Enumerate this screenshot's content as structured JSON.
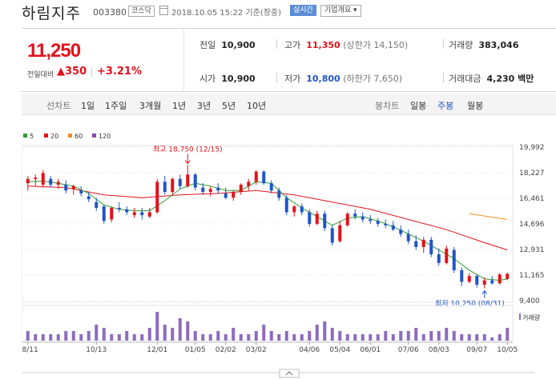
{
  "header": {
    "company_name": "하림지주",
    "code": "003380",
    "market_badge": "코스닥",
    "calendar_icon": "calendar-icon",
    "date": "2018.10.05 15:22 기준(장중)",
    "live_label": "실시간",
    "info_label": "기업개요 ▾"
  },
  "summary": {
    "price": "11,250",
    "change_label": "전일대비",
    "change_value": "▲350",
    "change_percent": "+3.21%",
    "prev_close_label": "전일",
    "prev_close": "10,900",
    "open_label": "시가",
    "open": "10,900",
    "high_label": "고가",
    "high": "11,350",
    "upper_limit": "(상한가 14,150)",
    "low_label": "저가",
    "low": "10,800",
    "lower_limit": "(하한가 7,650)",
    "volume_label": "거래량",
    "volume": "383,046",
    "amount_label": "거래대금",
    "amount": "4,230 백만"
  },
  "period_bar": {
    "line_label": "선차트",
    "periods": [
      "1일",
      "1주일",
      "3개월",
      "1년",
      "3년",
      "5년",
      "10년"
    ],
    "candle_label": "봉차트",
    "candle_types": [
      "일봉",
      "주봉",
      "월봉"
    ],
    "active_candle": "주봉"
  },
  "colors": {
    "up": "#e4111b",
    "down": "#1f55c8",
    "ma5": "#2ca02c",
    "ma20": "#e4111b",
    "ma60": "#f28c28",
    "ma120": "#8e44ad",
    "volume": "#8e6bbf"
  },
  "chart_data": {
    "type": "candlestick",
    "legend": [
      {
        "name": "5",
        "color": "#2ca02c"
      },
      {
        "name": "20",
        "color": "#e4111b"
      },
      {
        "name": "60",
        "color": "#f28c28"
      },
      {
        "name": "120",
        "color": "#8e44ad"
      }
    ],
    "y_ticks": [
      "19,992",
      "18,227",
      "16,461",
      "14,696",
      "12,931",
      "11,165",
      "9,400"
    ],
    "ylim": [
      9400,
      19992
    ],
    "x_ticks": [
      "08/11",
      "10/13",
      "12/01",
      "01/05",
      "02/02",
      "03/02",
      "04/06",
      "05/04",
      "06/01",
      "07/06",
      "08/03",
      "09/07",
      "10/05"
    ],
    "x_tick_index": [
      0,
      9,
      17,
      22,
      26,
      30,
      37,
      41,
      45,
      50,
      54,
      59,
      63
    ],
    "candles": [
      [
        17500,
        18000,
        17000,
        17800
      ],
      [
        17800,
        18100,
        17300,
        17900
      ],
      [
        17400,
        18400,
        17200,
        18200
      ],
      [
        17800,
        18000,
        17200,
        17400
      ],
      [
        17400,
        17800,
        17100,
        17600
      ],
      [
        17400,
        17700,
        16800,
        17000
      ],
      [
        17100,
        17400,
        16700,
        17300
      ],
      [
        17000,
        17300,
        16600,
        16800
      ],
      [
        16600,
        16900,
        16200,
        16400
      ],
      [
        16200,
        16500,
        15600,
        15800
      ],
      [
        15900,
        16000,
        14700,
        14900
      ],
      [
        15000,
        15900,
        14800,
        15800
      ],
      [
        15800,
        16200,
        15500,
        15700
      ],
      [
        15700,
        15900,
        15300,
        15500
      ],
      [
        15300,
        15800,
        15100,
        15500
      ],
      [
        15500,
        15800,
        15000,
        15300
      ],
      [
        15200,
        15800,
        15100,
        15500
      ],
      [
        15500,
        17800,
        15400,
        17600
      ],
      [
        17600,
        18000,
        16700,
        16900
      ],
      [
        16900,
        17900,
        16700,
        17800
      ],
      [
        17800,
        18100,
        17100,
        17300
      ],
      [
        17300,
        18750,
        17200,
        18100
      ],
      [
        18100,
        18200,
        17000,
        17200
      ],
      [
        17200,
        17500,
        16700,
        16900
      ],
      [
        16900,
        17300,
        16600,
        17100
      ],
      [
        17200,
        17500,
        16800,
        17000
      ],
      [
        16800,
        17200,
        16400,
        16500
      ],
      [
        16500,
        17000,
        16300,
        16900
      ],
      [
        16900,
        17500,
        16700,
        17400
      ],
      [
        17300,
        17800,
        17000,
        17600
      ],
      [
        17600,
        18400,
        17400,
        18300
      ],
      [
        18300,
        18400,
        17400,
        17500
      ],
      [
        17500,
        17700,
        16800,
        17000
      ],
      [
        17000,
        17200,
        16300,
        16500
      ],
      [
        16500,
        16700,
        15300,
        15500
      ],
      [
        15500,
        16000,
        15200,
        15900
      ],
      [
        15900,
        16100,
        15300,
        15500
      ],
      [
        15500,
        15700,
        14500,
        14700
      ],
      [
        14700,
        15600,
        14600,
        15400
      ],
      [
        15400,
        15600,
        14200,
        14400
      ],
      [
        14400,
        14600,
        13200,
        13400
      ],
      [
        13500,
        14900,
        13400,
        14600
      ],
      [
        14600,
        15500,
        14500,
        15400
      ],
      [
        15400,
        15700,
        15000,
        15200
      ],
      [
        15200,
        15500,
        14800,
        15000
      ],
      [
        15000,
        15300,
        14700,
        14900
      ],
      [
        14900,
        15100,
        14500,
        14700
      ],
      [
        14700,
        15000,
        14400,
        14600
      ],
      [
        14600,
        14900,
        14200,
        14300
      ],
      [
        14300,
        14600,
        13800,
        14000
      ],
      [
        14000,
        14300,
        13300,
        13500
      ],
      [
        13500,
        13900,
        12900,
        13100
      ],
      [
        13100,
        13800,
        12700,
        13600
      ],
      [
        13600,
        13800,
        12400,
        12600
      ],
      [
        12600,
        13000,
        11800,
        12000
      ],
      [
        12000,
        13200,
        11900,
        13000
      ],
      [
        12900,
        13100,
        11300,
        11500
      ],
      [
        11500,
        11700,
        10400,
        10700
      ],
      [
        10700,
        11300,
        10600,
        11100
      ],
      [
        11100,
        11200,
        10300,
        10500
      ],
      [
        10500,
        11000,
        10250,
        10800
      ],
      [
        10800,
        11100,
        10500,
        10600
      ],
      [
        10600,
        11300,
        10500,
        11200
      ],
      [
        10900,
        11350,
        10800,
        11250
      ]
    ],
    "ma5": [
      [
        0,
        17600
      ],
      [
        2,
        17650
      ],
      [
        4,
        17500
      ],
      [
        6,
        17300
      ],
      [
        8,
        16800
      ],
      [
        10,
        16000
      ],
      [
        12,
        15700
      ],
      [
        14,
        15600
      ],
      [
        16,
        15600
      ],
      [
        18,
        16300
      ],
      [
        20,
        17100
      ],
      [
        22,
        17500
      ],
      [
        24,
        17300
      ],
      [
        26,
        17000
      ],
      [
        28,
        17000
      ],
      [
        30,
        17600
      ],
      [
        32,
        17500
      ],
      [
        34,
        16500
      ],
      [
        36,
        15800
      ],
      [
        38,
        15200
      ],
      [
        40,
        14600
      ],
      [
        42,
        15100
      ],
      [
        44,
        15200
      ],
      [
        46,
        14900
      ],
      [
        48,
        14500
      ],
      [
        50,
        14000
      ],
      [
        52,
        13500
      ],
      [
        54,
        12900
      ],
      [
        56,
        12300
      ],
      [
        58,
        11500
      ],
      [
        60,
        10900
      ],
      [
        62,
        10800
      ],
      [
        63,
        10900
      ]
    ],
    "ma20": [
      [
        0,
        17300
      ],
      [
        5,
        17200
      ],
      [
        10,
        16700
      ],
      [
        15,
        16500
      ],
      [
        20,
        16700
      ],
      [
        25,
        16800
      ],
      [
        30,
        17000
      ],
      [
        35,
        16700
      ],
      [
        40,
        16200
      ],
      [
        45,
        15700
      ],
      [
        50,
        15000
      ],
      [
        55,
        14300
      ],
      [
        60,
        13400
      ],
      [
        63,
        12900
      ]
    ],
    "ma60": [
      [
        58,
        15400
      ],
      [
        63,
        15000
      ]
    ],
    "max_marker": {
      "index": 21,
      "value": 18750,
      "label": "최고 18,750 (12/15)"
    },
    "min_marker": {
      "index": 60,
      "value": 10250,
      "label": "최저 10,250 (08/31)"
    },
    "volume_label": "거래량",
    "volume": [
      3,
      2,
      2,
      2,
      2,
      3,
      3,
      2,
      3,
      5,
      4,
      2,
      2,
      3,
      2,
      2,
      4,
      9,
      5,
      4,
      7,
      6,
      3,
      2,
      2,
      3,
      2,
      4,
      2,
      2,
      3,
      5,
      3,
      2,
      3,
      2,
      2,
      3,
      5,
      6,
      4,
      3,
      2,
      2,
      2,
      2,
      2,
      3,
      2,
      3,
      3,
      4,
      2,
      3,
      3,
      4,
      3,
      2,
      2,
      2,
      2,
      1,
      2,
      4
    ],
    "volume_max": 10
  }
}
